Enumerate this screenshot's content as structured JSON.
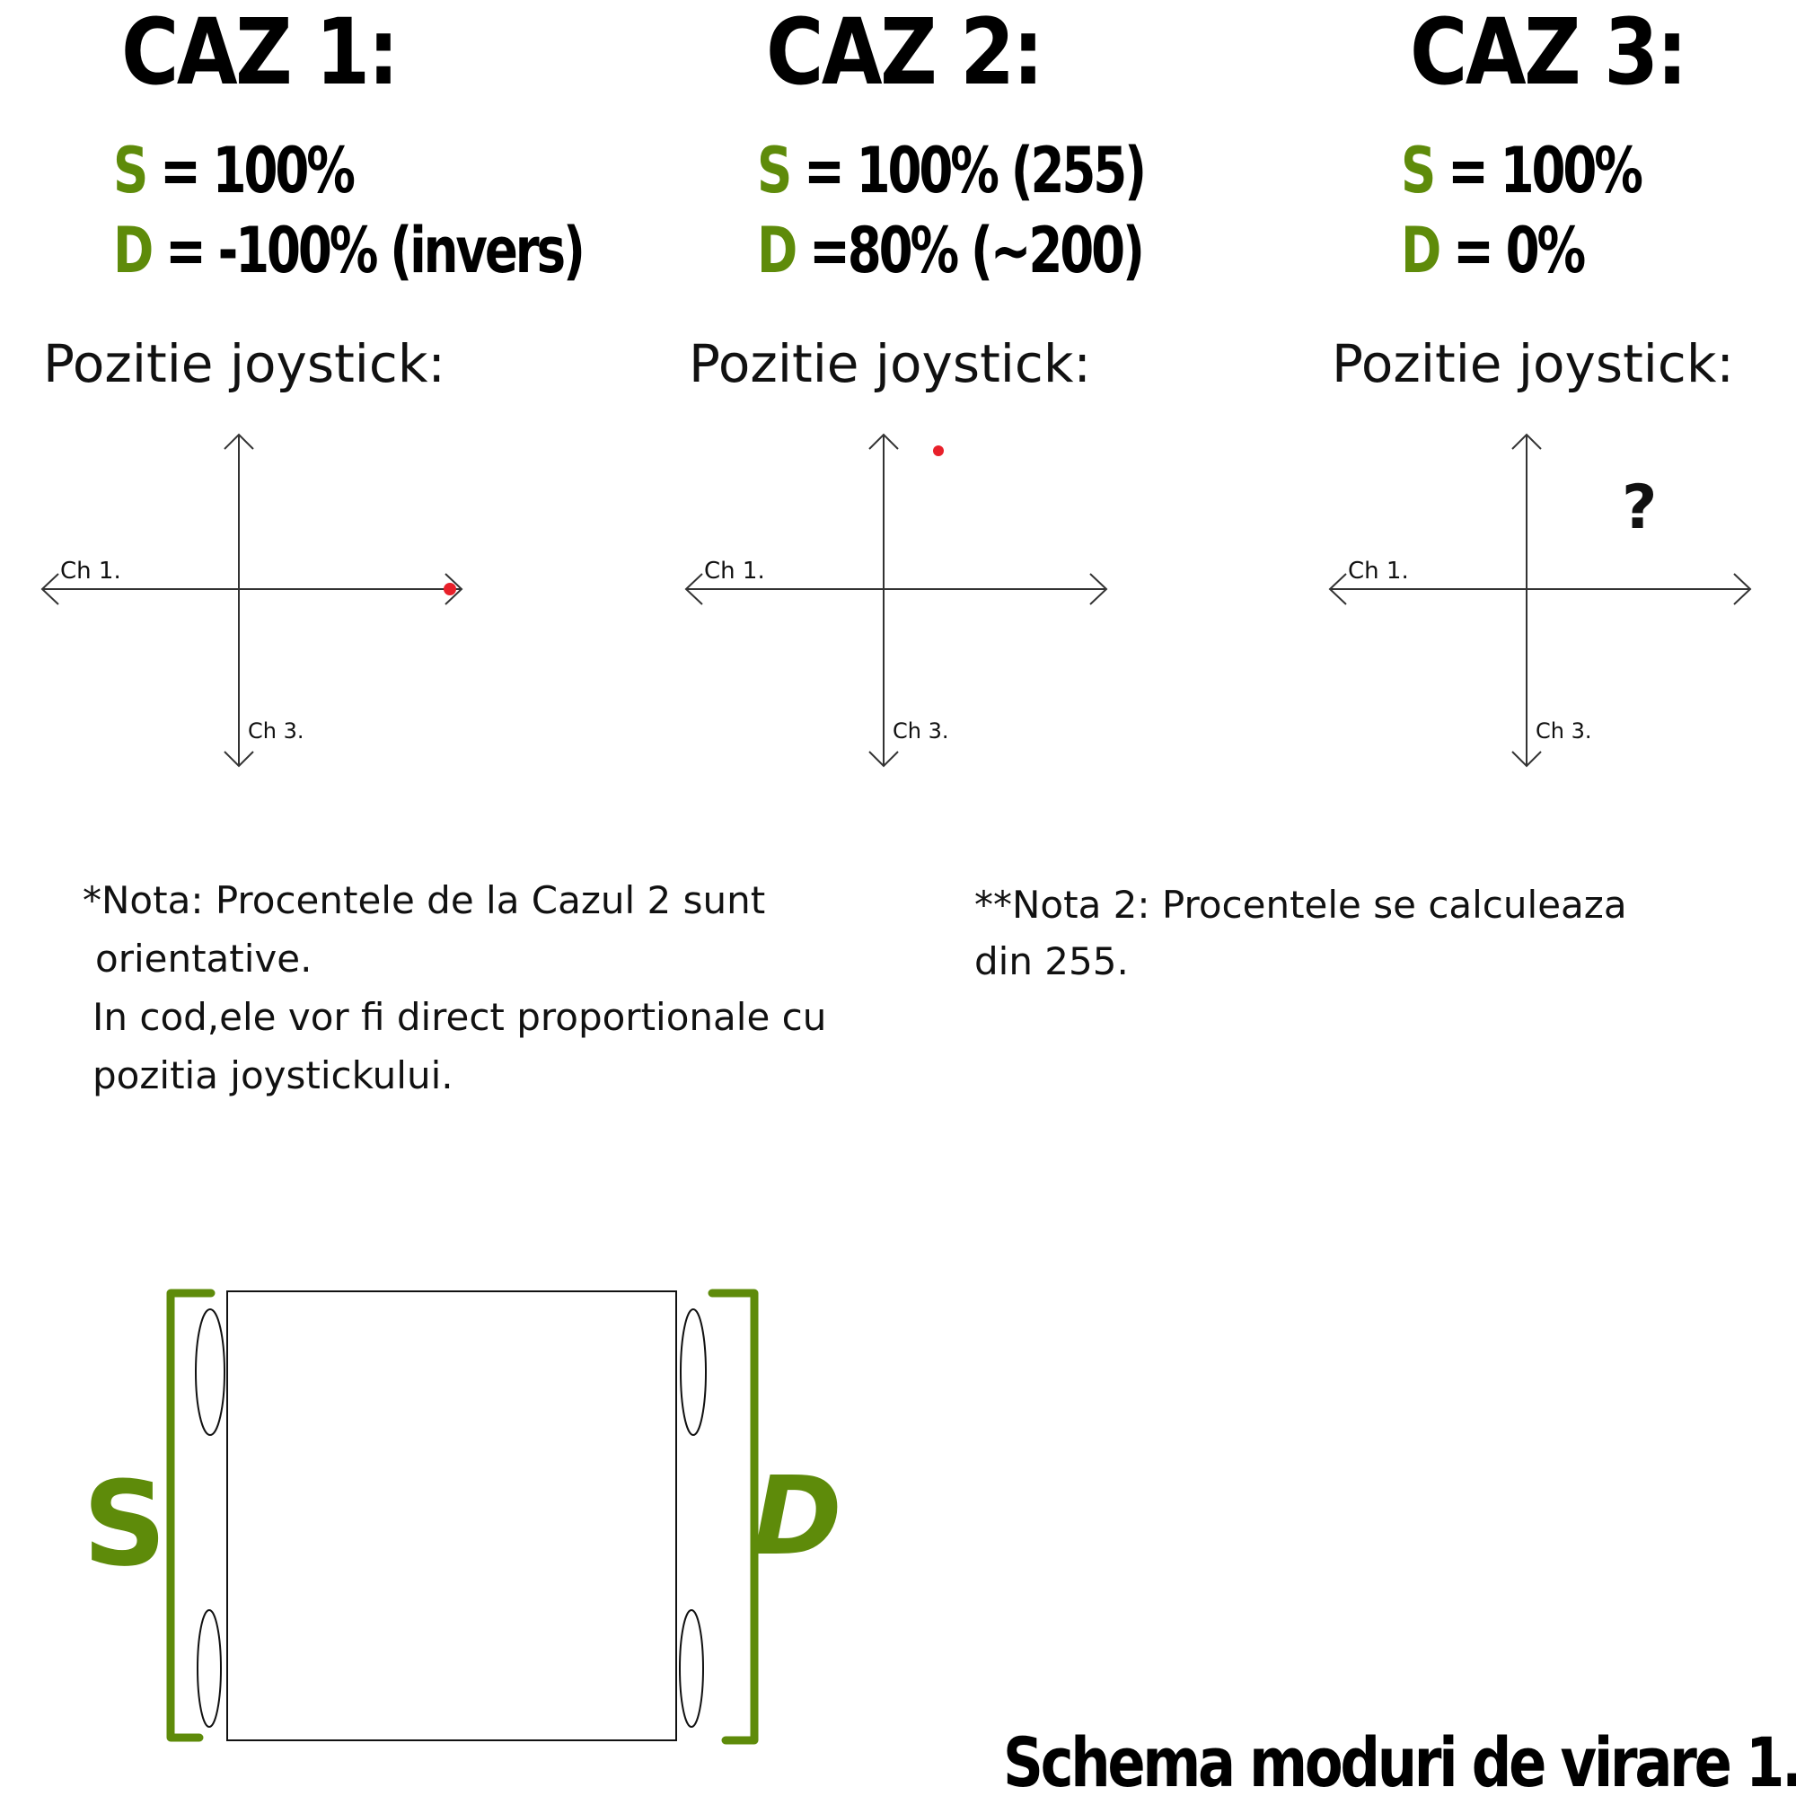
{
  "cases": [
    {
      "title": "CAZ 1:",
      "s_letter": "S",
      "s_value": "= 100%",
      "d_letter": "D",
      "d_value": "= -100% (invers)",
      "position_label": "Pozitie joystick:",
      "x_axis_label": "Ch 1.",
      "y_axis_label": "Ch 3.",
      "marker": "dot",
      "marker_symbol": ""
    },
    {
      "title": "CAZ 2:",
      "s_letter": "S",
      "s_value": "= 100% (255)",
      "d_letter": "D",
      "d_value": "=80% (~200)",
      "position_label": "Pozitie joystick:",
      "x_axis_label": "Ch 1.",
      "y_axis_label": "Ch 3.",
      "marker": "dot",
      "marker_symbol": ""
    },
    {
      "title": "CAZ 3:",
      "s_letter": "S",
      "s_value": "= 100%",
      "d_letter": "D",
      "d_value": "= 0%",
      "position_label": "Pozitie joystick:",
      "x_axis_label": "Ch 1.",
      "y_axis_label": "Ch 3.",
      "marker": "unknown",
      "marker_symbol": "?"
    }
  ],
  "notes": {
    "note1_line1": "*Nota: Procentele de la Cazul 2 sunt",
    "note1_line2": "orientative.",
    "note1_line3": "In cod,ele vor fi direct proportionale cu",
    "note1_line4": "pozitia joystickului.",
    "note2_line1": "**Nota 2: Procentele se calculeaza",
    "note2_line2": "din 255."
  },
  "vehicle": {
    "left_label": "S",
    "right_label": "D"
  },
  "caption": "Schema moduri de virare 1.",
  "colors": {
    "accent_green": "#5e8b0a",
    "marker_red": "#e8202a",
    "text": "#000000"
  }
}
